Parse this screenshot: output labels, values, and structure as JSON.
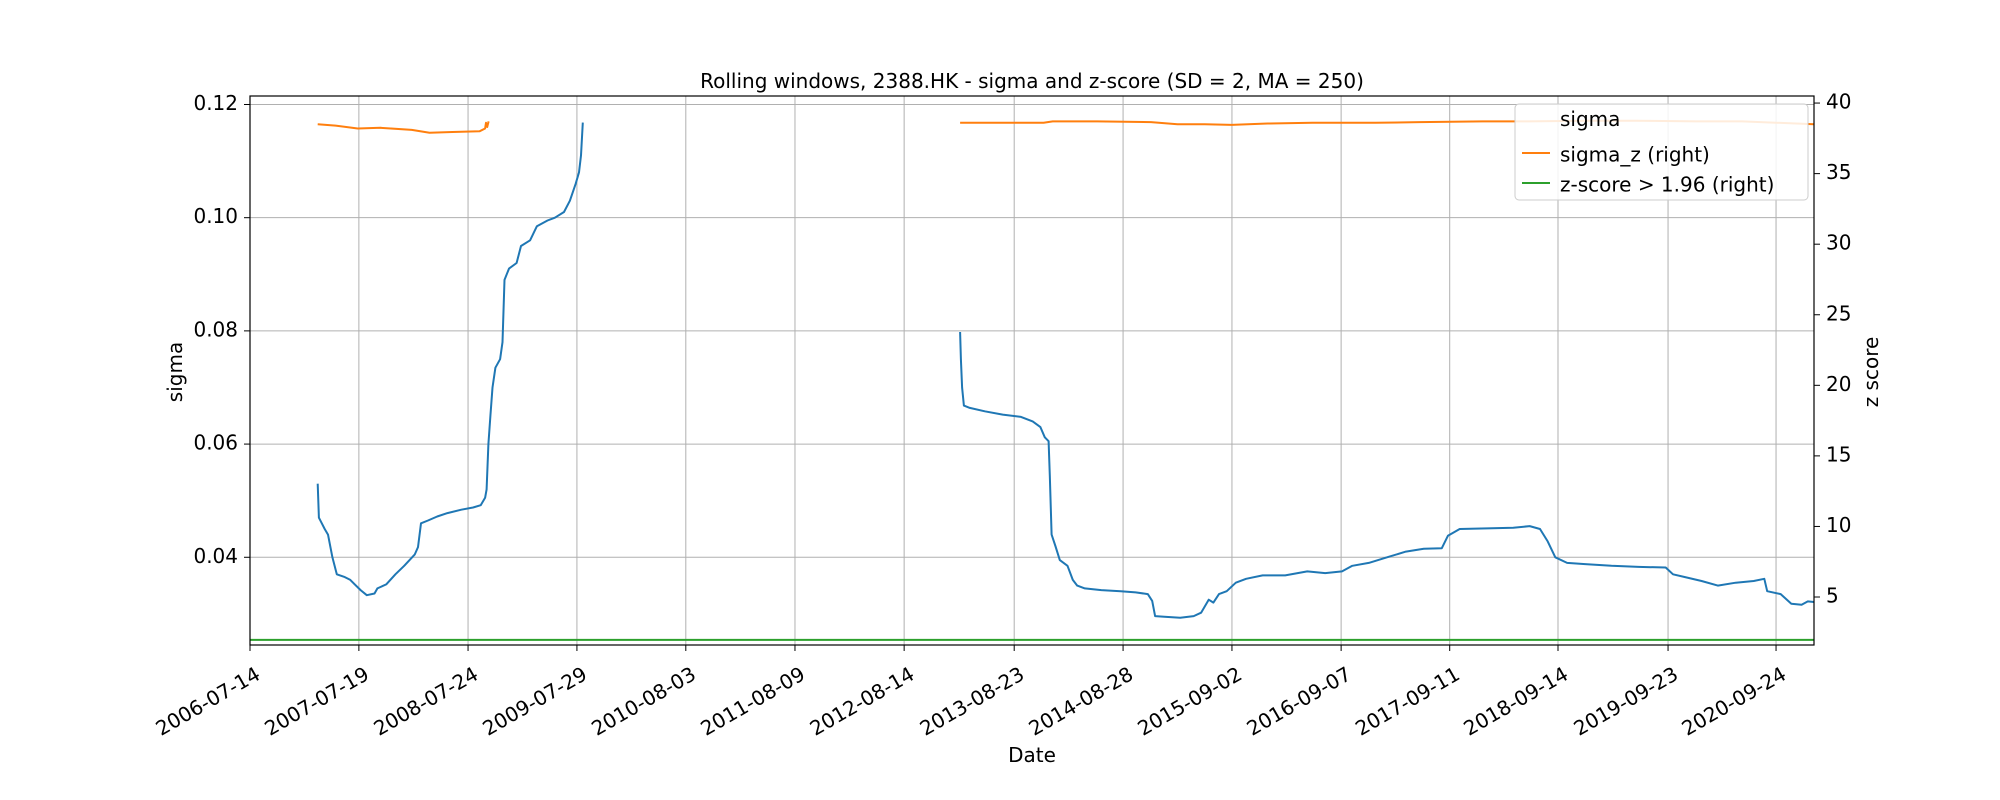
{
  "chart_data": {
    "type": "line",
    "title": "Rolling windows, 2388.HK - sigma and z-score (SD = 2, MA = 250)",
    "xlabel": "Date",
    "ylabel": "sigma",
    "y2label": "z score",
    "x_tick_labels": [
      "2006-07-14",
      "2007-07-19",
      "2008-07-24",
      "2009-07-29",
      "2010-08-03",
      "2011-08-09",
      "2012-08-14",
      "2013-08-23",
      "2014-08-28",
      "2015-09-02",
      "2016-09-07",
      "2017-09-11",
      "2018-09-14",
      "2019-09-23",
      "2020-09-24"
    ],
    "x_range": [
      "2006-07-14",
      "2021-01-31"
    ],
    "ylim": [
      0.0245,
      0.1215
    ],
    "y_ticks": [
      0.04,
      0.06,
      0.08,
      0.1,
      0.12
    ],
    "y_tick_labels": [
      "0.04",
      "0.06",
      "0.08",
      "0.10",
      "0.12"
    ],
    "y2lim": [
      1.6,
      40.5
    ],
    "y2_ticks": [
      5,
      10,
      15,
      20,
      25,
      30,
      35,
      40
    ],
    "y2_tick_labels": [
      "5",
      "10",
      "15",
      "20",
      "25",
      "30",
      "35",
      "40"
    ],
    "grid": true,
    "legend": {
      "placement": "top-right",
      "title": "sigma",
      "entries": [
        {
          "label": "sigma_z (right)",
          "color": "#ff7f0e"
        },
        {
          "label": "z-score > 1.96 (right)",
          "color": "#2ca02c"
        }
      ]
    },
    "series": [
      {
        "name": "sigma",
        "axis": "left",
        "color": "#1f77b4",
        "segments": [
          [
            [
              "2007-03-01",
              0.053
            ],
            [
              "2007-03-05",
              0.047
            ],
            [
              "2007-03-15",
              0.046
            ],
            [
              "2007-03-25",
              0.045
            ],
            [
              "2007-04-05",
              0.044
            ],
            [
              "2007-04-20",
              0.04
            ],
            [
              "2007-05-05",
              0.037
            ],
            [
              "2007-06-01",
              0.0365
            ],
            [
              "2007-06-20",
              0.036
            ],
            [
              "2007-07-05",
              0.0352
            ],
            [
              "2007-07-25",
              0.0342
            ],
            [
              "2007-08-15",
              0.0333
            ],
            [
              "2007-09-10",
              0.0336
            ],
            [
              "2007-09-20",
              0.0345
            ],
            [
              "2007-10-20",
              0.0352
            ],
            [
              "2007-11-20",
              0.037
            ],
            [
              "2007-12-20",
              0.0385
            ],
            [
              "2008-01-25",
              0.0405
            ],
            [
              "2008-02-05",
              0.0418
            ],
            [
              "2008-02-15",
              0.046
            ],
            [
              "2008-03-10",
              0.0465
            ],
            [
              "2008-04-10",
              0.0472
            ],
            [
              "2008-05-15",
              0.0478
            ],
            [
              "2008-07-01",
              0.0484
            ],
            [
              "2008-08-10",
              0.0488
            ],
            [
              "2008-09-05",
              0.0492
            ],
            [
              "2008-09-20",
              0.0505
            ],
            [
              "2008-09-25",
              0.052
            ],
            [
              "2008-10-01",
              0.06
            ],
            [
              "2008-10-08",
              0.065
            ],
            [
              "2008-10-15",
              0.07
            ],
            [
              "2008-10-25",
              0.0735
            ],
            [
              "2008-11-10",
              0.075
            ],
            [
              "2008-11-18",
              0.078
            ],
            [
              "2008-11-25",
              0.089
            ],
            [
              "2008-12-10",
              0.091
            ],
            [
              "2009-01-05",
              0.092
            ],
            [
              "2009-01-20",
              0.095
            ],
            [
              "2009-02-20",
              0.096
            ],
            [
              "2009-03-15",
              0.0985
            ],
            [
              "2009-04-20",
              0.0995
            ],
            [
              "2009-05-15",
              0.1
            ],
            [
              "2009-06-15",
              0.101
            ],
            [
              "2009-07-05",
              0.103
            ],
            [
              "2009-07-25",
              0.106
            ],
            [
              "2009-08-05",
              0.108
            ],
            [
              "2009-08-12",
              0.111
            ],
            [
              "2009-08-18",
              0.1168
            ]
          ],
          [
            [
              "2013-02-20",
              0.0798
            ],
            [
              "2013-02-23",
              0.075
            ],
            [
              "2013-02-27",
              0.07
            ],
            [
              "2013-03-05",
              0.0668
            ],
            [
              "2013-03-25",
              0.0664
            ],
            [
              "2013-05-15",
              0.0658
            ],
            [
              "2013-07-15",
              0.0652
            ],
            [
              "2013-09-15",
              0.0648
            ],
            [
              "2013-10-25",
              0.064
            ],
            [
              "2013-11-20",
              0.063
            ],
            [
              "2013-12-05",
              0.0612
            ],
            [
              "2013-12-18",
              0.0605
            ],
            [
              "2013-12-22",
              0.0545
            ],
            [
              "2013-12-28",
              0.044
            ],
            [
              "2014-01-10",
              0.042
            ],
            [
              "2014-01-25",
              0.0395
            ],
            [
              "2014-02-20",
              0.0385
            ],
            [
              "2014-03-10",
              0.036
            ],
            [
              "2014-03-25",
              0.035
            ],
            [
              "2014-04-20",
              0.0345
            ],
            [
              "2014-06-15",
              0.0342
            ],
            [
              "2014-08-20",
              0.034
            ],
            [
              "2014-10-10",
              0.0338
            ],
            [
              "2014-11-20",
              0.0335
            ],
            [
              "2014-12-05",
              0.0323
            ],
            [
              "2014-12-15",
              0.0296
            ],
            [
              "2015-01-15",
              0.0295
            ],
            [
              "2015-03-10",
              0.0293
            ],
            [
              "2015-04-25",
              0.0296
            ],
            [
              "2015-05-20",
              0.0302
            ],
            [
              "2015-06-15",
              0.0325
            ],
            [
              "2015-07-01",
              0.032
            ],
            [
              "2015-07-20",
              0.0335
            ],
            [
              "2015-08-15",
              0.034
            ],
            [
              "2015-09-15",
              0.0355
            ],
            [
              "2015-10-20",
              0.0362
            ],
            [
              "2015-12-15",
              0.0368
            ],
            [
              "2016-03-01",
              0.0368
            ],
            [
              "2016-05-15",
              0.0375
            ],
            [
              "2016-07-15",
              0.0372
            ],
            [
              "2016-09-10",
              0.0375
            ],
            [
              "2016-10-15",
              0.0385
            ],
            [
              "2016-12-10",
              0.039
            ],
            [
              "2017-02-10",
              0.04
            ],
            [
              "2017-04-15",
              0.041
            ],
            [
              "2017-06-15",
              0.0415
            ],
            [
              "2017-08-15",
              0.0416
            ],
            [
              "2017-09-05",
              0.0438
            ],
            [
              "2017-10-15",
              0.045
            ],
            [
              "2018-01-15",
              0.0451
            ],
            [
              "2018-04-15",
              0.0452
            ],
            [
              "2018-06-10",
              0.0455
            ],
            [
              "2018-07-15",
              0.045
            ],
            [
              "2018-08-10",
              0.0428
            ],
            [
              "2018-09-05",
              0.04
            ],
            [
              "2018-10-15",
              0.039
            ],
            [
              "2018-12-15",
              0.0388
            ],
            [
              "2019-03-15",
              0.0385
            ],
            [
              "2019-06-15",
              0.0383
            ],
            [
              "2019-09-15",
              0.0382
            ],
            [
              "2019-10-10",
              0.037
            ],
            [
              "2019-11-20",
              0.0365
            ],
            [
              "2020-01-15",
              0.0358
            ],
            [
              "2020-03-10",
              0.035
            ],
            [
              "2020-05-10",
              0.0355
            ],
            [
              "2020-07-10",
              0.0358
            ],
            [
              "2020-08-15",
              0.0362
            ],
            [
              "2020-08-25",
              0.034
            ],
            [
              "2020-10-10",
              0.0335
            ],
            [
              "2020-11-15",
              0.0318
            ],
            [
              "2020-12-20",
              0.0316
            ],
            [
              "2021-01-10",
              0.0322
            ],
            [
              "2021-01-31",
              0.0321
            ]
          ]
        ]
      },
      {
        "name": "sigma_z (right)",
        "axis": "right",
        "color": "#ff7f0e",
        "segments": [
          [
            [
              "2007-03-01",
              38.5
            ],
            [
              "2007-05-01",
              38.4
            ],
            [
              "2007-07-15",
              38.2
            ],
            [
              "2007-10-01",
              38.25
            ],
            [
              "2008-01-15",
              38.1
            ],
            [
              "2008-03-15",
              37.9
            ],
            [
              "2008-06-01",
              37.95
            ],
            [
              "2008-09-01",
              38.0
            ],
            [
              "2008-09-20",
              38.2
            ],
            [
              "2008-09-23",
              38.6
            ],
            [
              "2008-09-27",
              38.3
            ],
            [
              "2008-10-02",
              38.7
            ]
          ],
          [
            [
              "2013-02-20",
              38.6
            ],
            [
              "2013-06-01",
              38.6
            ],
            [
              "2013-12-01",
              38.6
            ],
            [
              "2014-01-01",
              38.7
            ],
            [
              "2014-06-01",
              38.7
            ],
            [
              "2014-12-01",
              38.65
            ],
            [
              "2015-03-01",
              38.5
            ],
            [
              "2015-06-01",
              38.5
            ],
            [
              "2015-09-01",
              38.45
            ],
            [
              "2016-01-01",
              38.55
            ],
            [
              "2016-06-01",
              38.6
            ],
            [
              "2017-01-01",
              38.6
            ],
            [
              "2017-06-01",
              38.65
            ],
            [
              "2018-01-01",
              38.7
            ],
            [
              "2018-06-01",
              38.7
            ],
            [
              "2019-01-01",
              38.75
            ],
            [
              "2019-06-01",
              38.75
            ],
            [
              "2020-01-01",
              38.7
            ],
            [
              "2020-06-01",
              38.7
            ],
            [
              "2021-01-31",
              38.5
            ]
          ]
        ]
      },
      {
        "name": "z-score > 1.96 (right)",
        "axis": "right",
        "color": "#2ca02c",
        "segments": [
          [
            [
              "2006-07-14",
              1.96
            ],
            [
              "2021-01-31",
              1.96
            ]
          ]
        ]
      }
    ]
  }
}
